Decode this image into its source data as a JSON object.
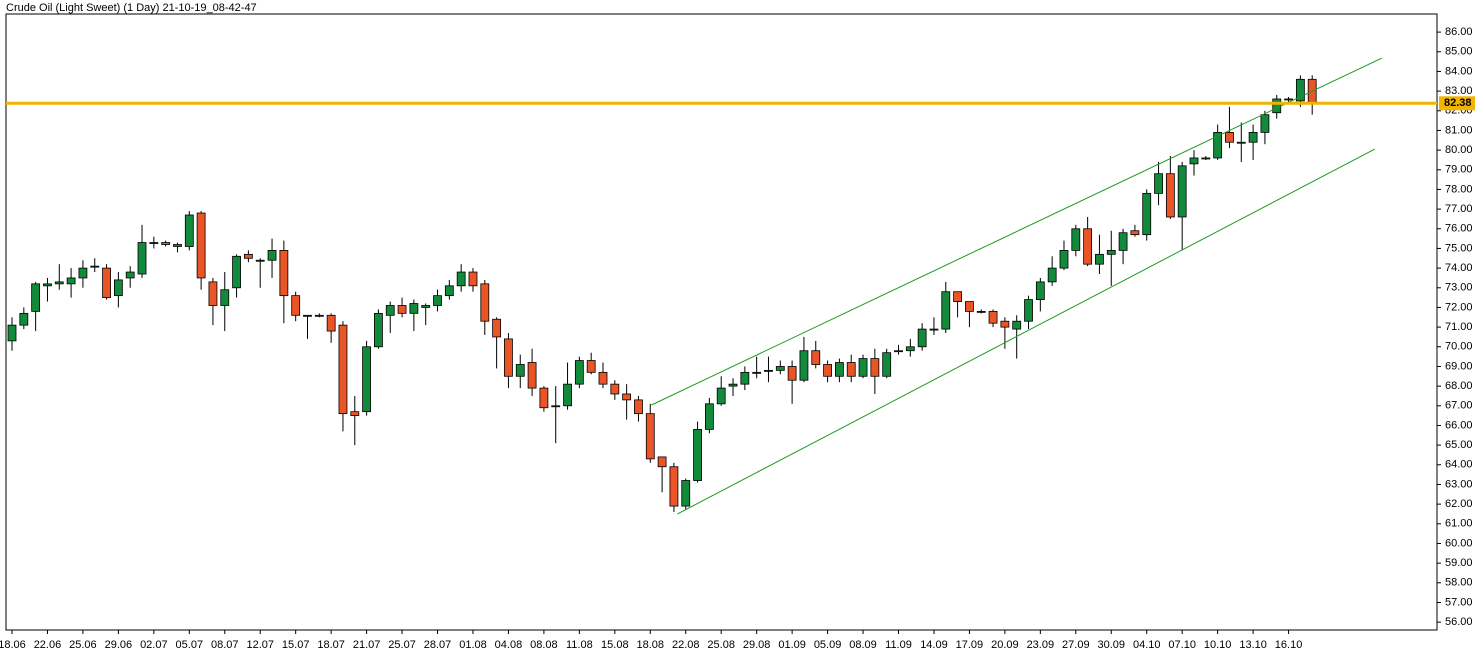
{
  "chart_data": {
    "type": "candlestick",
    "title": "Crude Oil (Light Sweet) (1 Day) 21-10-19_08-42-47",
    "categories": [
      "18.06",
      null,
      null,
      "22.06",
      null,
      null,
      "25.06",
      null,
      null,
      "29.06",
      null,
      null,
      "02.07",
      null,
      null,
      "05.07",
      null,
      null,
      "08.07",
      null,
      null,
      "12.07",
      null,
      null,
      "15.07",
      null,
      null,
      "18.07",
      null,
      null,
      "21.07",
      null,
      null,
      "25.07",
      null,
      null,
      "28.07",
      null,
      null,
      "01.08",
      null,
      null,
      "04.08",
      null,
      null,
      "08.08",
      null,
      null,
      "11.08",
      null,
      null,
      "15.08",
      null,
      null,
      "18.08",
      null,
      null,
      "22.08",
      null,
      null,
      "25.08",
      null,
      null,
      "29.08",
      null,
      null,
      "01.09",
      null,
      null,
      "05.09",
      null,
      null,
      "08.09",
      null,
      null,
      "11.09",
      null,
      null,
      "14.09",
      null,
      null,
      "17.09",
      null,
      null,
      "20.09",
      null,
      null,
      "23.09",
      null,
      null,
      "27.09",
      null,
      null,
      "30.09",
      null,
      null,
      "04.10",
      null,
      null,
      "07.10",
      null,
      null,
      "10.10",
      null,
      null,
      "13.10",
      null,
      null,
      "16.10",
      null,
      null
    ],
    "open": [
      70.3,
      71.1,
      71.8,
      73.1,
      73.2,
      73.2,
      73.5,
      74.1,
      74.0,
      72.6,
      73.5,
      73.7,
      75.3,
      75.3,
      75.1,
      75.1,
      76.8,
      73.3,
      72.1,
      73.0,
      74.7,
      74.4,
      74.4,
      74.9,
      72.6,
      71.6,
      71.6,
      71.6,
      71.1,
      66.7,
      66.7,
      70.0,
      71.6,
      72.1,
      71.7,
      72.0,
      72.1,
      72.6,
      73.1,
      73.8,
      73.2,
      71.4,
      70.4,
      68.5,
      69.2,
      67.9,
      67.0,
      67.0,
      68.1,
      69.3,
      68.7,
      68.1,
      67.6,
      67.3,
      66.6,
      64.4,
      63.9,
      61.9,
      63.2,
      65.8,
      67.1,
      68.0,
      68.1,
      68.7,
      68.8,
      68.8,
      69.0,
      68.3,
      69.8,
      69.1,
      68.5,
      69.2,
      68.5,
      69.4,
      68.5,
      69.8,
      69.8,
      70.0,
      70.9,
      70.9,
      72.8,
      72.3,
      71.8,
      71.8,
      71.3,
      70.9,
      71.3,
      72.4,
      73.3,
      74.0,
      74.9,
      76.0,
      74.2,
      74.7,
      74.9,
      75.9,
      75.7,
      77.8,
      78.8,
      76.6,
      79.3,
      79.6,
      79.6,
      80.9,
      80.4,
      80.4,
      80.9,
      81.9,
      82.6,
      82.5,
      83.6
    ],
    "high": [
      71.5,
      72.0,
      73.3,
      73.5,
      74.2,
      74.0,
      74.4,
      74.5,
      74.2,
      73.8,
      74.1,
      76.2,
      75.6,
      75.4,
      75.3,
      76.9,
      76.9,
      73.5,
      73.8,
      74.7,
      74.9,
      74.5,
      75.5,
      75.4,
      72.8,
      71.6,
      71.7,
      71.7,
      71.3,
      67.5,
      70.3,
      71.9,
      72.3,
      72.5,
      72.4,
      72.2,
      72.9,
      73.4,
      74.2,
      74.0,
      73.4,
      71.5,
      70.7,
      69.6,
      69.9,
      68.0,
      68.0,
      69.2,
      69.5,
      69.7,
      69.2,
      68.3,
      68.1,
      67.5,
      67.1,
      64.4,
      64.1,
      63.3,
      66.2,
      67.4,
      68.5,
      68.4,
      69.0,
      69.5,
      69.5,
      69.3,
      69.3,
      70.5,
      70.3,
      69.3,
      69.4,
      69.6,
      69.6,
      69.9,
      69.9,
      70.1,
      70.4,
      71.2,
      71.5,
      73.3,
      72.8,
      72.3,
      71.9,
      71.9,
      71.5,
      71.6,
      72.6,
      73.5,
      74.6,
      75.4,
      76.2,
      76.6,
      75.7,
      75.9,
      76.0,
      76.2,
      78.0,
      79.4,
      79.7,
      79.4,
      80.0,
      79.7,
      81.3,
      82.2,
      81.4,
      81.3,
      82.0,
      82.8,
      82.7,
      83.8,
      83.8
    ],
    "low": [
      69.8,
      70.9,
      70.8,
      72.3,
      72.9,
      72.5,
      73.0,
      73.8,
      72.4,
      72.0,
      73.0,
      73.5,
      75.0,
      75.1,
      74.8,
      74.9,
      72.9,
      71.1,
      70.8,
      72.5,
      74.3,
      73.0,
      73.5,
      71.2,
      71.3,
      70.4,
      71.5,
      70.2,
      65.7,
      65.0,
      66.5,
      69.9,
      70.7,
      71.5,
      70.8,
      71.1,
      71.8,
      72.4,
      72.8,
      72.8,
      70.6,
      68.9,
      67.9,
      67.9,
      67.5,
      66.7,
      65.1,
      66.8,
      67.9,
      68.6,
      67.9,
      67.3,
      66.3,
      66.2,
      64.1,
      62.6,
      61.6,
      61.7,
      63.1,
      65.6,
      67.0,
      67.5,
      67.8,
      68.4,
      68.2,
      68.6,
      67.1,
      68.2,
      68.9,
      68.2,
      68.2,
      68.2,
      68.4,
      67.6,
      68.4,
      69.6,
      69.5,
      69.8,
      70.6,
      70.7,
      71.5,
      71.0,
      71.7,
      71.0,
      69.9,
      69.4,
      70.9,
      71.8,
      73.1,
      73.9,
      74.6,
      74.1,
      73.7,
      73.1,
      74.2,
      75.6,
      75.4,
      77.2,
      76.5,
      74.9,
      78.7,
      79.5,
      79.5,
      80.1,
      79.4,
      79.5,
      80.3,
      81.6,
      82.4,
      82.2,
      81.8
    ],
    "close": [
      71.1,
      71.7,
      73.2,
      73.2,
      73.3,
      73.5,
      74.0,
      74.1,
      72.5,
      73.4,
      73.8,
      75.3,
      75.3,
      75.2,
      75.2,
      76.7,
      73.5,
      72.1,
      72.9,
      74.6,
      74.5,
      74.4,
      74.9,
      72.6,
      71.6,
      71.6,
      71.6,
      70.8,
      66.6,
      66.5,
      70.0,
      71.7,
      72.1,
      71.7,
      72.2,
      72.1,
      72.6,
      73.1,
      73.8,
      73.1,
      71.3,
      70.5,
      68.5,
      69.1,
      67.9,
      66.9,
      67.0,
      68.1,
      69.3,
      68.7,
      68.1,
      67.6,
      67.3,
      66.6,
      64.3,
      63.9,
      61.9,
      63.2,
      65.8,
      67.1,
      67.9,
      68.1,
      68.7,
      68.7,
      68.8,
      69.0,
      68.3,
      69.8,
      69.1,
      68.5,
      69.2,
      68.5,
      69.4,
      68.5,
      69.7,
      69.8,
      70.0,
      70.9,
      70.9,
      72.8,
      72.3,
      71.8,
      71.8,
      71.2,
      71.0,
      71.3,
      72.4,
      73.3,
      74.0,
      74.9,
      76.0,
      74.2,
      74.7,
      74.9,
      75.8,
      75.7,
      77.8,
      78.8,
      76.6,
      79.2,
      79.6,
      79.6,
      80.9,
      80.4,
      80.4,
      80.9,
      81.8,
      82.6,
      82.6,
      83.6,
      82.4
    ],
    "up_color": "#128a3c",
    "down_color": "#ea5528",
    "hline": {
      "value": 82.38,
      "color": "#f2b400"
    },
    "channel": {
      "color": "#1f9a1f",
      "lines": [
        {
          "x": [
            54.1,
            115.9
          ],
          "y": [
            67.04,
            84.68
          ]
        },
        {
          "x": [
            56.3,
            115.3
          ],
          "y": [
            61.5,
            80.05
          ]
        }
      ]
    },
    "ylim": [
      55.6,
      86.92
    ],
    "yticks": [
      {
        "value": 56,
        "label": "56.00"
      },
      {
        "value": 57,
        "label": "57.00"
      },
      {
        "value": 58,
        "label": "58.00"
      },
      {
        "value": 59,
        "label": "59.00"
      },
      {
        "value": 60,
        "label": "60.00"
      },
      {
        "value": 61,
        "label": "61.00"
      },
      {
        "value": 62,
        "label": "62.00"
      },
      {
        "value": 63,
        "label": "63.00"
      },
      {
        "value": 64,
        "label": "64.00"
      },
      {
        "value": 65,
        "label": "65.00"
      },
      {
        "value": 66,
        "label": "66.00"
      },
      {
        "value": 67,
        "label": "67.00"
      },
      {
        "value": 68,
        "label": "68.00"
      },
      {
        "value": 69,
        "label": "69.00"
      },
      {
        "value": 70,
        "label": "70.00"
      },
      {
        "value": 71,
        "label": "71.00"
      },
      {
        "value": 72,
        "label": "72.00"
      },
      {
        "value": 73,
        "label": "73.00"
      },
      {
        "value": 74,
        "label": "74.00"
      },
      {
        "value": 75,
        "label": "75.00"
      },
      {
        "value": 76,
        "label": "76.00"
      },
      {
        "value": 77,
        "label": "77.00"
      },
      {
        "value": 78,
        "label": "78.00"
      },
      {
        "value": 79,
        "label": "79.00"
      },
      {
        "value": 80,
        "label": "80.00"
      },
      {
        "value": 81,
        "label": "81.00"
      },
      {
        "value": 82,
        "label": "82.00"
      },
      {
        "value": 83,
        "label": "83.00"
      },
      {
        "value": 84,
        "label": "84.00"
      },
      {
        "value": 85,
        "label": "85.00"
      },
      {
        "value": 86,
        "label": "86.00"
      }
    ]
  }
}
